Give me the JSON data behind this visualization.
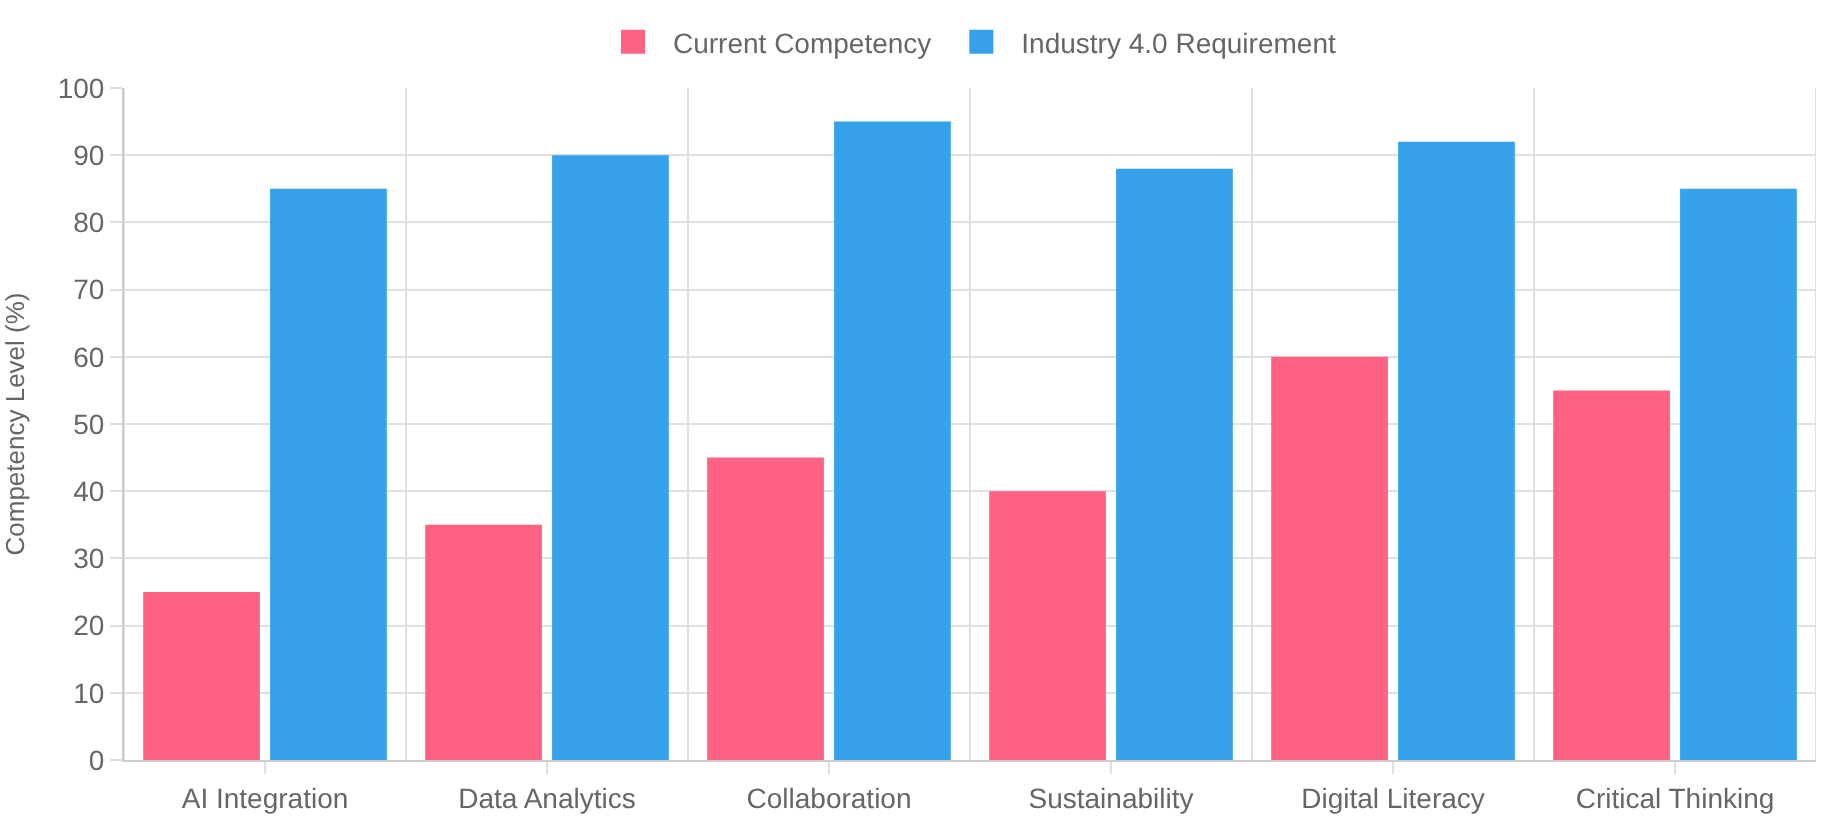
{
  "chart_data": {
    "type": "bar",
    "ylabel": "Competency Level (%)",
    "categories": [
      "AI Integration",
      "Data Analytics",
      "Collaboration",
      "Sustainability",
      "Digital Literacy",
      "Critical Thinking"
    ],
    "series": [
      {
        "name": "Current Competency",
        "color": "#ff6384",
        "values": [
          25,
          35,
          45,
          40,
          60,
          55
        ]
      },
      {
        "name": "Industry 4.0 Requirement",
        "color": "#36a2eb",
        "values": [
          85,
          90,
          95,
          88,
          92,
          85
        ]
      }
    ],
    "ylim": [
      0,
      100
    ],
    "yticks": [
      0,
      10,
      20,
      30,
      40,
      50,
      60,
      70,
      80,
      90,
      100
    ],
    "grid": true,
    "legend": "top"
  }
}
